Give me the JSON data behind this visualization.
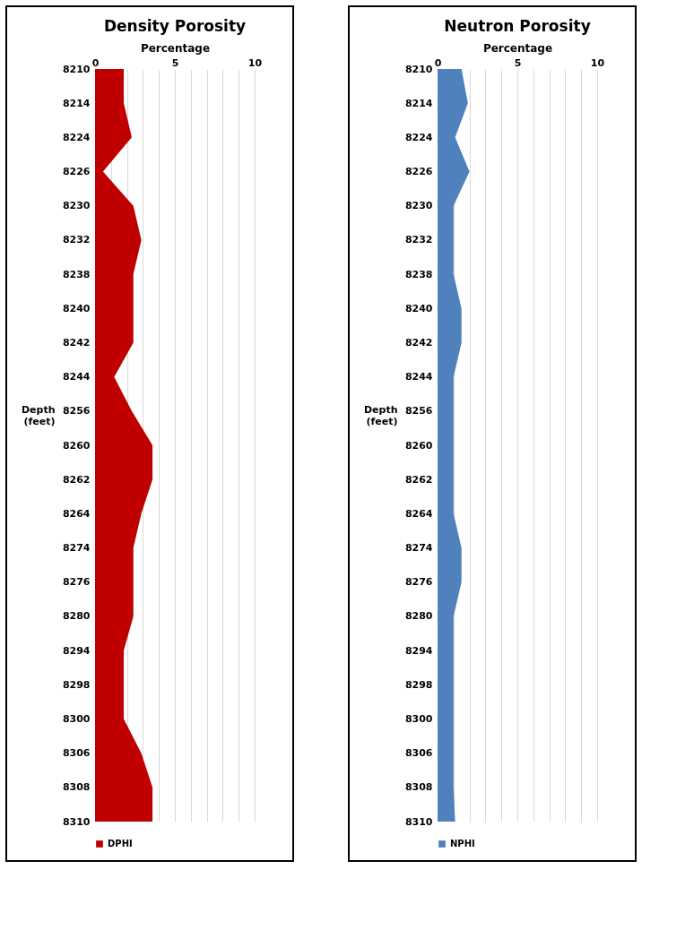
{
  "chart_data": [
    {
      "type": "area",
      "orientation": "horizontal",
      "title": "Density Porosity",
      "xlabel": "Percentage",
      "ylabel": "Depth (feet)",
      "categories": [
        "8210",
        "8214",
        "8224",
        "8226",
        "8230",
        "8232",
        "8238",
        "8240",
        "8242",
        "8244",
        "8256",
        "8260",
        "8262",
        "8264",
        "8274",
        "8276",
        "8280",
        "8294",
        "8298",
        "8300",
        "8306",
        "8308",
        "8310"
      ],
      "series": [
        {
          "name": "DPHI",
          "color": "#c00000",
          "values": [
            1.8,
            1.8,
            2.3,
            0.5,
            2.4,
            2.9,
            2.4,
            2.4,
            2.4,
            1.2,
            2.3,
            3.6,
            3.6,
            2.9,
            2.4,
            2.4,
            2.4,
            1.8,
            1.8,
            1.8,
            2.9,
            3.6,
            3.6
          ]
        }
      ],
      "xlim": [
        0,
        10
      ],
      "xticks": [
        0,
        {
          "value": 1,
          "label": null
        },
        {
          "value": 2,
          "label": null
        },
        {
          "value": 3,
          "label": null
        },
        {
          "value": 4,
          "label": null
        },
        5,
        {
          "value": 6,
          "label": null
        },
        {
          "value": 7,
          "label": null
        },
        {
          "value": 8,
          "label": null
        },
        {
          "value": 9,
          "label": null
        },
        10
      ],
      "grid": "x",
      "legend": "bottom"
    },
    {
      "type": "area",
      "orientation": "horizontal",
      "title": "Neutron Porosity",
      "xlabel": "Percentage",
      "ylabel": "Depth (feet)",
      "categories": [
        "8210",
        "8214",
        "8224",
        "8226",
        "8230",
        "8232",
        "8238",
        "8240",
        "8242",
        "8244",
        "8256",
        "8260",
        "8262",
        "8264",
        "8274",
        "8276",
        "8280",
        "8294",
        "8298",
        "8300",
        "8306",
        "8308",
        "8310"
      ],
      "series": [
        {
          "name": "NPHI",
          "color": "#4f81bd",
          "values": [
            1.5,
            1.9,
            1.1,
            2.0,
            1.0,
            1.0,
            1.0,
            1.5,
            1.5,
            1.0,
            1.0,
            1.0,
            1.0,
            1.0,
            1.5,
            1.5,
            1.0,
            1.0,
            1.0,
            1.0,
            1.0,
            1.0,
            1.1
          ]
        }
      ],
      "xlim": [
        0,
        10
      ],
      "xticks": [
        0,
        {
          "value": 1,
          "label": null
        },
        {
          "value": 2,
          "label": null
        },
        {
          "value": 3,
          "label": null
        },
        {
          "value": 4,
          "label": null
        },
        5,
        {
          "value": 6,
          "label": null
        },
        {
          "value": 7,
          "label": null
        },
        {
          "value": 8,
          "label": null
        },
        {
          "value": 9,
          "label": null
        },
        10
      ],
      "grid": "x",
      "legend": "bottom"
    }
  ]
}
